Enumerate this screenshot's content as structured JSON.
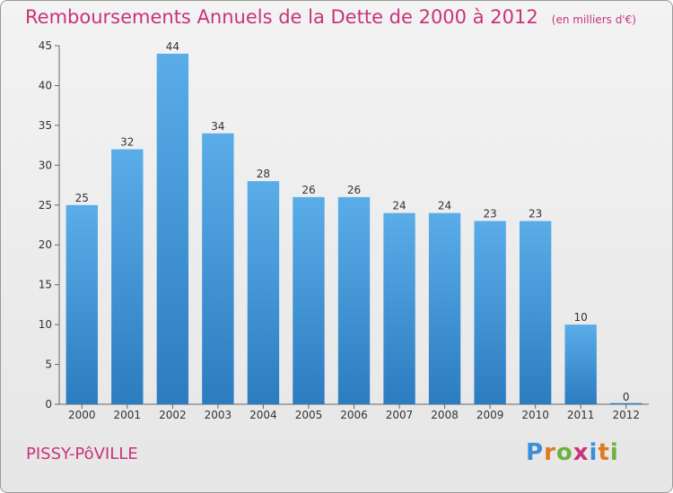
{
  "header": {
    "title": "Remboursements Annuels de la Dette de 2000 à 2012",
    "subtitle": "(en milliers d'€)"
  },
  "footer": {
    "town": "PISSY-PôVILLE",
    "brand_letters": [
      "P",
      "r",
      "o",
      "x",
      "i",
      "t",
      "i"
    ],
    "brand_colors": [
      "#3a8fd8",
      "#e07a1f",
      "#6cb33f",
      "#c8337a",
      "#3a8fd8",
      "#e07a1f",
      "#6cb33f"
    ]
  },
  "chart_data": {
    "type": "bar",
    "title": "Remboursements Annuels de la Dette de 2000 à 2012",
    "subtitle": "(en milliers d'€)",
    "categories": [
      "2000",
      "2001",
      "2002",
      "2003",
      "2004",
      "2005",
      "2006",
      "2007",
      "2008",
      "2009",
      "2010",
      "2011",
      "2012"
    ],
    "values": [
      25,
      32,
      44,
      34,
      28,
      26,
      26,
      24,
      24,
      23,
      23,
      10,
      0
    ],
    "data_labels": [
      "25",
      "32",
      "44",
      "34",
      "28",
      "26",
      "26",
      "24",
      "24",
      "23",
      "23",
      "10",
      "0"
    ],
    "ylim": [
      0,
      45
    ],
    "yticks": [
      0,
      5,
      10,
      15,
      20,
      25,
      30,
      35,
      40,
      45
    ],
    "ytick_labels": [
      "0",
      "5",
      "10",
      "15",
      "20",
      "25",
      "30",
      "35",
      "40",
      "45"
    ],
    "xlabel": "",
    "ylabel": "",
    "grid": false,
    "bar_color_top": "#5aade8",
    "bar_color_bottom": "#2c7cc0"
  }
}
